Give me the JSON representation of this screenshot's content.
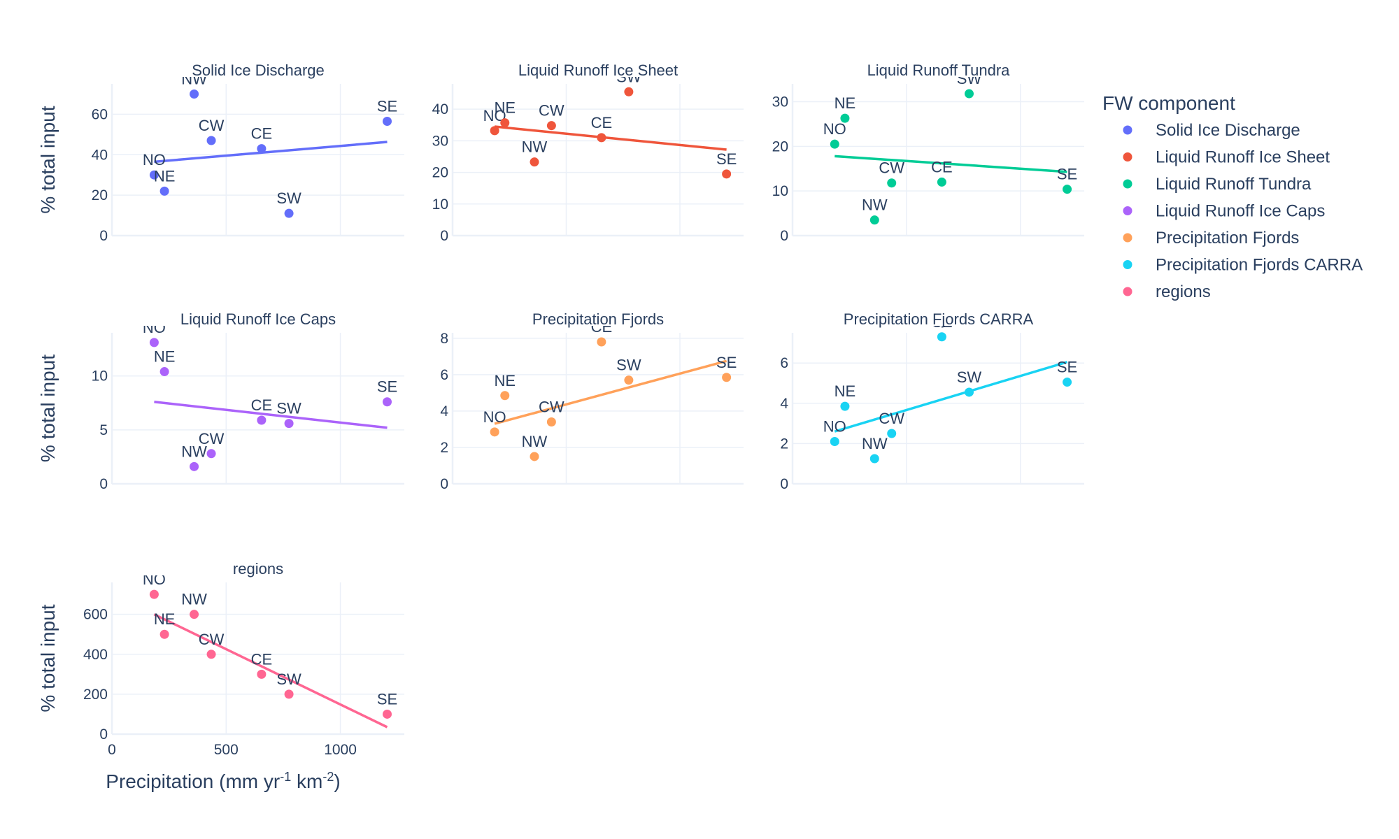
{
  "legend": {
    "title": "FW component",
    "placement": "right",
    "items": [
      {
        "label": "Solid Ice Discharge",
        "color": "#636efa"
      },
      {
        "label": "Liquid Runoff Ice Sheet",
        "color": "#ef553b"
      },
      {
        "label": "Liquid Runoff Tundra",
        "color": "#00cc96"
      },
      {
        "label": "Liquid Runoff Ice Caps",
        "color": "#ab63fa"
      },
      {
        "label": "Precipitation Fjords",
        "color": "#ffa15a"
      },
      {
        "label": "Precipitation Fjords CARRA",
        "color": "#19d3f3"
      },
      {
        "label": "regions",
        "color": "#ff6692"
      }
    ]
  },
  "axes": {
    "ylabel": "% total input",
    "xlabel_parts": [
      "Precipitation (mm yr",
      "-1",
      " km",
      "-2",
      ")"
    ],
    "xlim": [
      0,
      1280
    ],
    "xticks": [
      0,
      500,
      1000
    ]
  },
  "chart_data": [
    {
      "type": "scatter",
      "title": "Solid Ice Discharge",
      "color": "#636efa",
      "ylim": [
        0,
        75
      ],
      "yticks": [
        0,
        20,
        40,
        60
      ],
      "points": [
        {
          "label": "NO",
          "x": 185,
          "y": 30
        },
        {
          "label": "NE",
          "x": 230,
          "y": 22
        },
        {
          "label": "NW",
          "x": 360,
          "y": 70
        },
        {
          "label": "CW",
          "x": 435,
          "y": 47
        },
        {
          "label": "CE",
          "x": 655,
          "y": 43
        },
        {
          "label": "SW",
          "x": 775,
          "y": 11
        },
        {
          "label": "SE",
          "x": 1205,
          "y": 56.5
        }
      ],
      "trend": [
        [
          185,
          36.5
        ],
        [
          1205,
          46.3
        ]
      ]
    },
    {
      "type": "scatter",
      "title": "Liquid Runoff Ice Sheet",
      "color": "#ef553b",
      "ylim": [
        0,
        48
      ],
      "yticks": [
        0,
        10,
        20,
        30,
        40
      ],
      "points": [
        {
          "label": "NO",
          "x": 185,
          "y": 33.2
        },
        {
          "label": "NE",
          "x": 230,
          "y": 35.7
        },
        {
          "label": "NW",
          "x": 360,
          "y": 23.3
        },
        {
          "label": "CW",
          "x": 435,
          "y": 34.8
        },
        {
          "label": "CE",
          "x": 655,
          "y": 31
        },
        {
          "label": "SW",
          "x": 775,
          "y": 45.5
        },
        {
          "label": "SE",
          "x": 1205,
          "y": 19.5
        }
      ],
      "trend": [
        [
          185,
          34.5
        ],
        [
          1205,
          27.2
        ]
      ]
    },
    {
      "type": "scatter",
      "title": "Liquid Runoff Tundra",
      "color": "#00cc96",
      "ylim": [
        0,
        34
      ],
      "yticks": [
        0,
        10,
        20,
        30
      ],
      "points": [
        {
          "label": "NO",
          "x": 185,
          "y": 20.5
        },
        {
          "label": "NE",
          "x": 230,
          "y": 26.3
        },
        {
          "label": "NW",
          "x": 360,
          "y": 3.5
        },
        {
          "label": "CW",
          "x": 435,
          "y": 11.8
        },
        {
          "label": "CE",
          "x": 655,
          "y": 12
        },
        {
          "label": "SW",
          "x": 775,
          "y": 31.8
        },
        {
          "label": "SE",
          "x": 1205,
          "y": 10.4
        }
      ],
      "trend": [
        [
          185,
          17.8
        ],
        [
          1205,
          14.3
        ]
      ]
    },
    {
      "type": "scatter",
      "title": "Liquid Runoff Ice Caps",
      "color": "#ab63fa",
      "ylim": [
        0,
        14
      ],
      "yticks": [
        0,
        5,
        10
      ],
      "points": [
        {
          "label": "NO",
          "x": 185,
          "y": 13.1
        },
        {
          "label": "NE",
          "x": 230,
          "y": 10.4
        },
        {
          "label": "NW",
          "x": 360,
          "y": 1.6
        },
        {
          "label": "CW",
          "x": 435,
          "y": 2.8
        },
        {
          "label": "CE",
          "x": 655,
          "y": 5.9
        },
        {
          "label": "SW",
          "x": 775,
          "y": 5.6
        },
        {
          "label": "SE",
          "x": 1205,
          "y": 7.6
        }
      ],
      "trend": [
        [
          185,
          7.6
        ],
        [
          1205,
          5.2
        ]
      ]
    },
    {
      "type": "scatter",
      "title": "Precipitation Fjords",
      "color": "#ffa15a",
      "ylim": [
        0,
        8.3
      ],
      "yticks": [
        0,
        2,
        4,
        6,
        8
      ],
      "points": [
        {
          "label": "NO",
          "x": 185,
          "y": 2.85
        },
        {
          "label": "NE",
          "x": 230,
          "y": 4.85
        },
        {
          "label": "NW",
          "x": 360,
          "y": 1.5
        },
        {
          "label": "CW",
          "x": 435,
          "y": 3.4
        },
        {
          "label": "CE",
          "x": 655,
          "y": 7.8
        },
        {
          "label": "SW",
          "x": 775,
          "y": 5.7
        },
        {
          "label": "SE",
          "x": 1205,
          "y": 5.85
        }
      ],
      "trend": [
        [
          185,
          3.3
        ],
        [
          1205,
          6.75
        ]
      ]
    },
    {
      "type": "scatter",
      "title": "Precipitation Fjords CARRA",
      "color": "#19d3f3",
      "ylim": [
        0,
        7.5
      ],
      "yticks": [
        0,
        2,
        4,
        6
      ],
      "points": [
        {
          "label": "NO",
          "x": 185,
          "y": 2.1
        },
        {
          "label": "NE",
          "x": 230,
          "y": 3.85
        },
        {
          "label": "NW",
          "x": 360,
          "y": 1.25
        },
        {
          "label": "CW",
          "x": 435,
          "y": 2.5
        },
        {
          "label": "CE",
          "x": 655,
          "y": 7.3
        },
        {
          "label": "SW",
          "x": 775,
          "y": 4.55
        },
        {
          "label": "SE",
          "x": 1205,
          "y": 5.05
        }
      ],
      "trend": [
        [
          185,
          2.6
        ],
        [
          1205,
          6.05
        ]
      ]
    },
    {
      "type": "scatter",
      "title": "regions",
      "color": "#ff6692",
      "ylim": [
        0,
        760
      ],
      "yticks": [
        0,
        200,
        400,
        600
      ],
      "points": [
        {
          "label": "NO",
          "x": 185,
          "y": 700
        },
        {
          "label": "NE",
          "x": 230,
          "y": 500
        },
        {
          "label": "NW",
          "x": 360,
          "y": 600
        },
        {
          "label": "CW",
          "x": 435,
          "y": 400
        },
        {
          "label": "CE",
          "x": 655,
          "y": 300
        },
        {
          "label": "SW",
          "x": 775,
          "y": 200
        },
        {
          "label": "SE",
          "x": 1205,
          "y": 100
        }
      ],
      "trend": [
        [
          185,
          600
        ],
        [
          1205,
          35
        ]
      ]
    }
  ]
}
